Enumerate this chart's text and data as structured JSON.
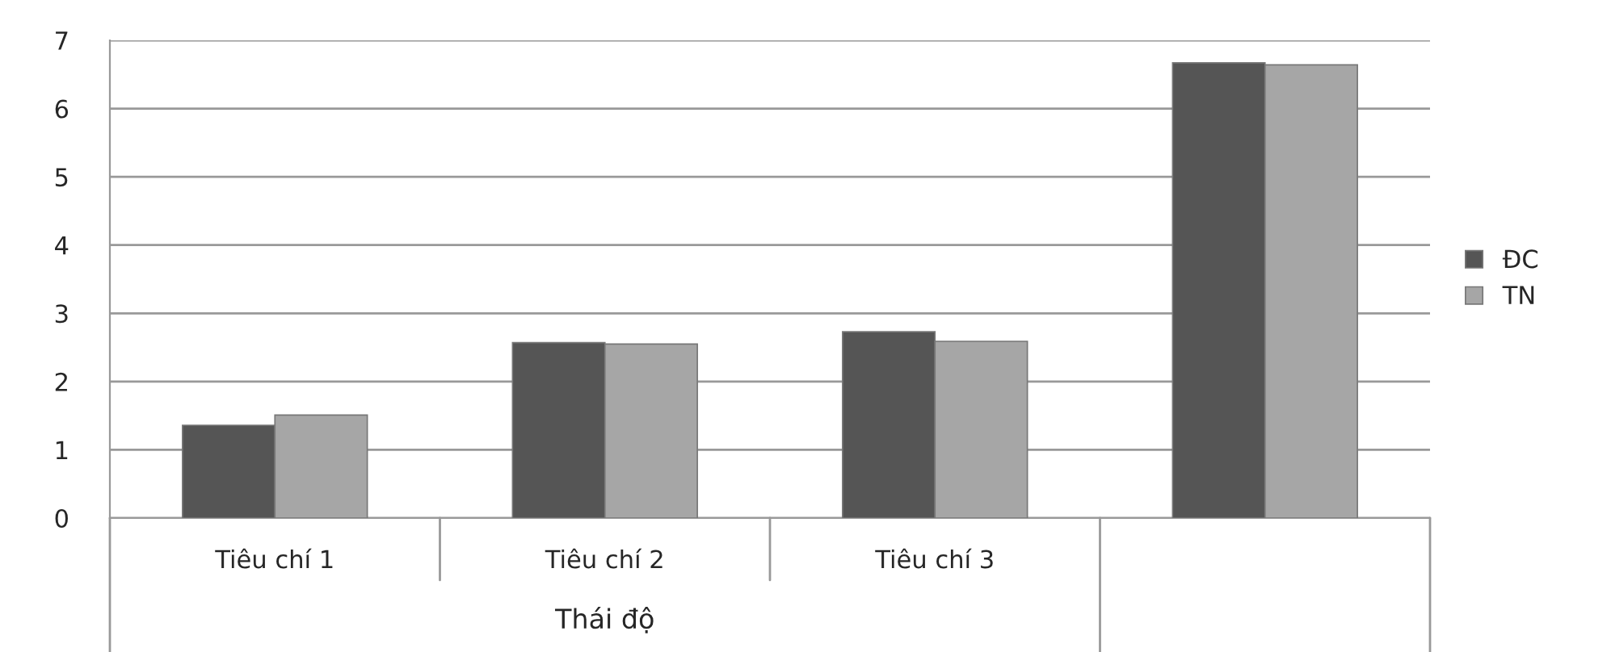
{
  "chart_data": {
    "type": "bar",
    "categories": [
      "Tiêu chí 1",
      "Tiêu chí 2",
      "Tiêu chí 3",
      null
    ],
    "series": [
      {
        "name": "ĐC",
        "color": "#555555",
        "values": [
          1.36,
          2.57,
          2.73,
          6.67
        ]
      },
      {
        "name": "TN",
        "color": "#a6a6a6",
        "values": [
          1.51,
          2.55,
          2.59,
          6.64
        ]
      }
    ],
    "ylim": [
      0,
      7
    ],
    "yticks": [
      0,
      1,
      2,
      3,
      4,
      5,
      6,
      7
    ],
    "grid": "y",
    "legend": "right",
    "annotations": [
      "Thái độ"
    ]
  }
}
